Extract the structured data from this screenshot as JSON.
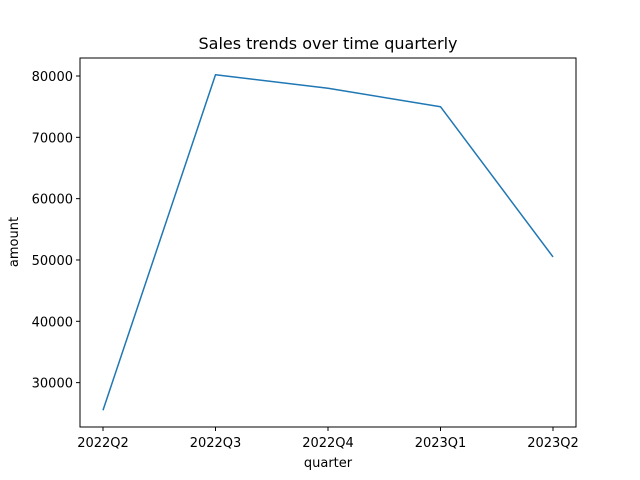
{
  "chart_data": {
    "type": "line",
    "title": "Sales trends over time quarterly",
    "xlabel": "quarter",
    "ylabel": "amount",
    "categories": [
      "2022Q2",
      "2022Q3",
      "2022Q4",
      "2023Q1",
      "2023Q2"
    ],
    "series": [
      {
        "values": [
          25500,
          80200,
          78000,
          75000,
          50500
        ],
        "color": "#1f77b4"
      }
    ],
    "yticks": [
      30000,
      40000,
      50000,
      60000,
      70000,
      80000
    ],
    "ytick_labels": [
      "30000",
      "40000",
      "50000",
      "60000",
      "70000",
      "80000"
    ],
    "ylim": [
      22765,
      82935
    ],
    "grid": false,
    "legend": "none"
  }
}
